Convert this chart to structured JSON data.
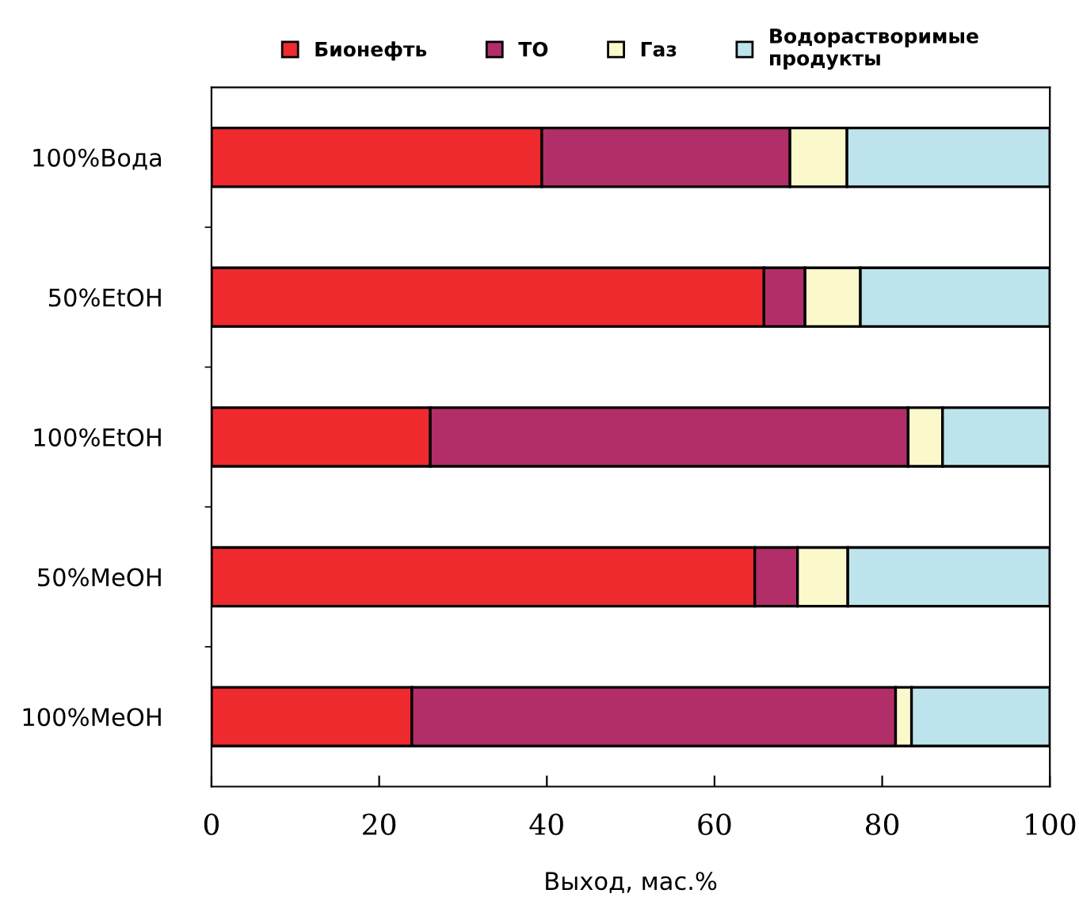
{
  "chart_data": {
    "type": "bar",
    "orientation": "horizontal",
    "stacked": true,
    "xlabel": "Выход, мас.%",
    "categories": [
      "100%Вода",
      "50%EtOH",
      "100%EtOH",
      "50%MeOH",
      "100%MeOH"
    ],
    "series": [
      {
        "name": "Бионефть",
        "color": "#ee2a2f",
        "values": [
          39.4,
          65.9,
          26.1,
          64.8,
          23.9
        ]
      },
      {
        "name": "ТО",
        "color": "#b22e69",
        "values": [
          29.6,
          4.9,
          57.0,
          5.1,
          57.7
        ]
      },
      {
        "name": "Газ",
        "color": "#fbf8cb",
        "values": [
          6.8,
          6.6,
          4.1,
          6.0,
          1.9
        ]
      },
      {
        "name": "Водорастворимые\nпродукты",
        "color": "#bde4ec",
        "values": [
          24.2,
          22.6,
          12.8,
          24.1,
          16.5
        ]
      }
    ],
    "xlim": [
      0,
      100
    ],
    "xticks": [
      0,
      20,
      40,
      60,
      80,
      100
    ],
    "grid": false,
    "legend": "top"
  }
}
